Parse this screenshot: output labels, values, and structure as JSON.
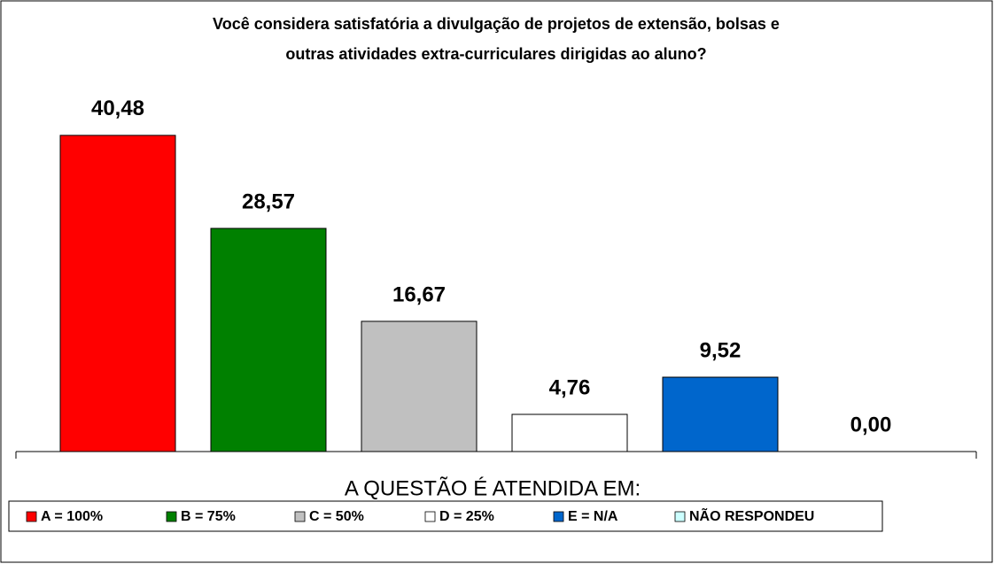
{
  "chart_data": {
    "type": "bar",
    "title": [
      "Você considera satisfatória a divulgação de projetos de extensão, bolsas e",
      "outras atividades extra-curriculares dirigidas ao aluno?"
    ],
    "x_label": "A QUESTÃO É ATENDIDA EM:",
    "categories": [
      "A = 100%",
      "B = 75%",
      "C = 50%",
      "D = 25%",
      "E = N/A",
      "NÃO RESPONDEU"
    ],
    "values": [
      40.48,
      28.57,
      16.67,
      4.76,
      9.52,
      0
    ],
    "value_labels": [
      "40,48",
      "28,57",
      "16,67",
      "4,76",
      "9,52",
      "0,00"
    ],
    "colors": [
      "#ff0000",
      "#008000",
      "#c0c0c0",
      "#ffffff",
      "#0066cc",
      "#ccffff"
    ],
    "ylim": [
      0,
      45
    ],
    "legend": "bottom"
  }
}
